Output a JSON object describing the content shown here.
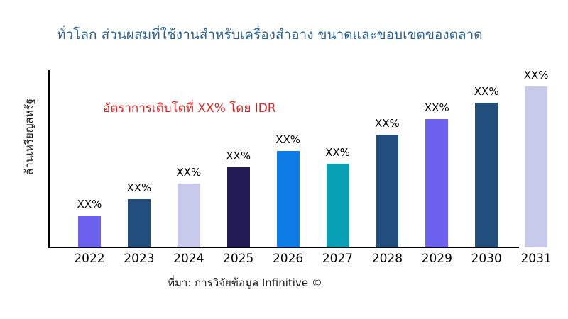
{
  "chart_data": {
    "type": "bar",
    "title": "ทั่วโลก ส่วนผสมที่ใช้งานสำหรับเครื่องสำอาง ขนาดและขอบเขตของตลาด",
    "ylabel": "ล้านเหรียญสหรัฐ",
    "xlabel": "",
    "annotation": "อัตราการเติบโตที่ XX% โดย IDR",
    "source": "ที่มา: การวิจัยข้อมูล Infinitive ©",
    "categories": [
      "2022",
      "2023",
      "2024",
      "2025",
      "2026",
      "2027",
      "2028",
      "2029",
      "2030",
      "2031"
    ],
    "series": [
      {
        "name": "market-size",
        "values": [
          45,
          68,
          90,
          113,
          136,
          118,
          159,
          181,
          204,
          227
        ],
        "values_note": "relative bar heights estimated from pixels; numeric values not shown in chart",
        "data_labels": [
          "XX%",
          "XX%",
          "XX%",
          "XX%",
          "XX%",
          "XX%",
          "XX%",
          "XX%",
          "XX%",
          "XX%"
        ]
      }
    ],
    "bar_colors": [
      "#6c61ee",
      "#214e7d",
      "#c8caec",
      "#201a55",
      "#0d7ce5",
      "#08a0b4",
      "#214e7d",
      "#6c61ee",
      "#214e7d",
      "#c8caec"
    ],
    "ylim": [
      0,
      250
    ],
    "grid": false,
    "legend_position": "none",
    "colors": {
      "title": "#2e6191",
      "annotation": "#e02020",
      "axis": "#000000",
      "text": "#000000",
      "background": "#ffffff"
    }
  }
}
